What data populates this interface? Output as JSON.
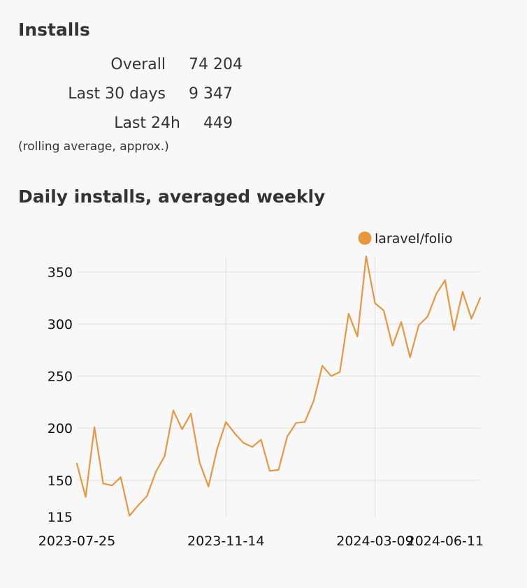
{
  "installs": {
    "title": "Installs",
    "rows": [
      {
        "label": "Overall",
        "value": "74 204"
      },
      {
        "label": "Last 30 days",
        "value": "9 347"
      },
      {
        "label": "Last 24h",
        "value": "449"
      }
    ],
    "note": "(rolling average, approx.)"
  },
  "chart_title": "Daily installs, averaged weekly",
  "chart_data": {
    "type": "line",
    "title": "Daily installs, averaged weekly",
    "xlabel": "",
    "ylabel": "",
    "legend_position": "top-right",
    "grid": true,
    "ylim": [
      115,
      365
    ],
    "y_ticks": [
      "350",
      "300",
      "250",
      "200",
      "150",
      "115"
    ],
    "x_ticks": [
      "2023-07-25",
      "2023-11-14",
      "2024-03-09",
      "2024-06-11"
    ],
    "color": "#E8973F",
    "series": [
      {
        "name": "laravel/folio",
        "values": [
          166,
          134,
          201,
          147,
          145,
          153,
          116,
          126,
          135,
          158,
          173,
          217,
          199,
          214,
          167,
          144,
          180,
          206,
          195,
          186,
          182,
          189,
          159,
          160,
          192,
          205,
          206,
          226,
          260,
          250,
          254,
          310,
          288,
          365,
          320,
          313,
          279,
          302,
          268,
          299,
          307,
          329,
          342,
          294,
          331,
          305,
          325
        ]
      }
    ]
  }
}
